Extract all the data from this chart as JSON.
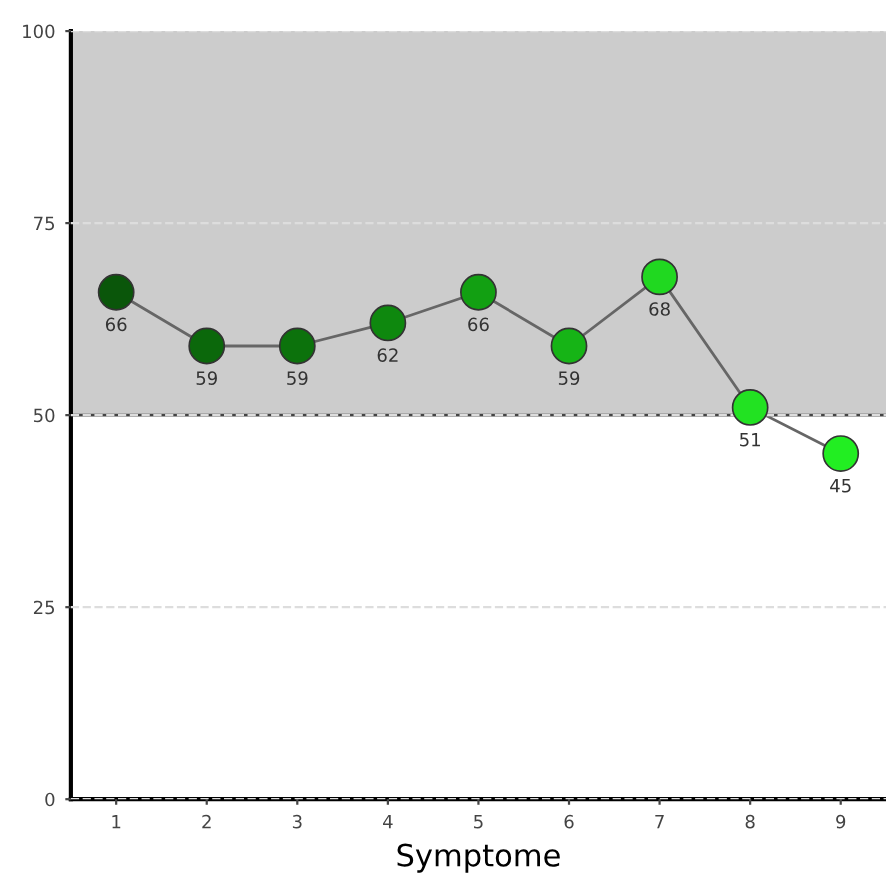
{
  "chart_data": {
    "type": "line",
    "xlabel": "Symptome",
    "categories": [
      "1",
      "2",
      "3",
      "4",
      "5",
      "6",
      "7",
      "8",
      "9"
    ],
    "series": [
      {
        "color": "#666666",
        "values": [
          66,
          59,
          59,
          62,
          66,
          59,
          68,
          51,
          45
        ],
        "colors": [
          "#0a560a",
          "#0b680b",
          "#0c720c",
          "#0e880e",
          "#12a012",
          "#16b416",
          "#20d820",
          "#22e222",
          "#22ee22"
        ]
      }
    ],
    "ylim": [
      0,
      100
    ],
    "yticks": [
      0,
      25,
      50,
      75,
      100
    ],
    "grid": "y",
    "marker": "circle",
    "line_style": "solid",
    "data_labels": true,
    "legend": false,
    "bands": [
      {
        "axis": "y",
        "from": 50,
        "to": 100,
        "color": "#cccccc"
      }
    ],
    "ref_lines": [
      {
        "axis": "y",
        "value": 50,
        "color": "#444444",
        "line_style": "solid"
      }
    ]
  }
}
